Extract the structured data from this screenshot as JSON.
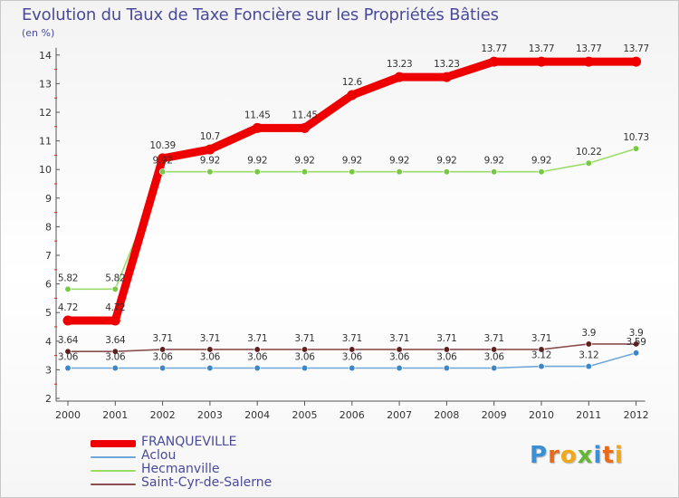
{
  "chart_data": {
    "type": "line",
    "title": "Evolution du Taux de Taxe Foncière sur les Propriétés Bâties",
    "ylabel": "(en %)",
    "xlabel": "",
    "ylim": [
      2,
      14
    ],
    "y_ticks": [
      "2",
      "3",
      "4",
      "5",
      "6",
      "7",
      "8",
      "9",
      "10",
      "11",
      "12",
      "13",
      "14"
    ],
    "categories": [
      "2000",
      "2001",
      "2002",
      "2003",
      "2004",
      "2005",
      "2006",
      "2007",
      "2008",
      "2009",
      "2010",
      "2011",
      "2012"
    ],
    "grid": false,
    "legend_position": "bottom-left",
    "series": [
      {
        "name": "Hecmanville",
        "color": "#99dd66",
        "marker": "#77c844",
        "values": [
          5.82,
          5.82,
          9.92,
          9.92,
          9.92,
          9.92,
          9.92,
          9.92,
          9.92,
          9.92,
          9.92,
          10.22,
          10.73
        ],
        "labels": [
          "5.82",
          "5.82",
          "9.92",
          "9.92",
          "9.92",
          "9.92",
          "9.92",
          "9.92",
          "9.92",
          "9.92",
          "9.92",
          "10.22",
          "10.73"
        ]
      },
      {
        "name": "Aclou",
        "color": "#6fa8d8",
        "marker": "#3f86c6",
        "values": [
          3.06,
          3.06,
          3.06,
          3.06,
          3.06,
          3.06,
          3.06,
          3.06,
          3.06,
          3.06,
          3.12,
          3.12,
          3.59
        ],
        "labels": [
          "3.06",
          "3.06",
          "3.06",
          "3.06",
          "3.06",
          "3.06",
          "3.06",
          "3.06",
          "3.06",
          "3.06",
          "3.12",
          "3.12",
          "3.59"
        ]
      },
      {
        "name": "Saint-Cyr-de-Salerne",
        "color": "#8a4e4e",
        "marker": "#5e1f1f",
        "values": [
          3.64,
          3.64,
          3.71,
          3.71,
          3.71,
          3.71,
          3.71,
          3.71,
          3.71,
          3.71,
          3.71,
          3.9,
          3.9
        ],
        "labels": [
          "3.64",
          "3.64",
          "3.71",
          "3.71",
          "3.71",
          "3.71",
          "3.71",
          "3.71",
          "3.71",
          "3.71",
          "3.71",
          "3.9",
          "3.9"
        ]
      },
      {
        "name": "FRANQUEVILLE",
        "color": "#ee0000",
        "marker": "#ee0000",
        "values": [
          4.72,
          4.72,
          10.39,
          10.7,
          11.45,
          11.45,
          12.6,
          13.23,
          13.23,
          13.77,
          13.77,
          13.77,
          13.77
        ],
        "labels": [
          "4.72",
          "4.72",
          "10.39",
          "10.7",
          "11.45",
          "11.45",
          "12.6",
          "13.23",
          "13.23",
          "13.77",
          "13.77",
          "13.77",
          "13.77"
        ]
      }
    ],
    "legend_order": [
      "FRANQUEVILLE",
      "Aclou",
      "Hecmanville",
      "Saint-Cyr-de-Salerne"
    ]
  },
  "logo": {
    "letters": [
      "P",
      "r",
      "o",
      "x",
      "i",
      "t",
      "i"
    ],
    "colors": [
      "#3b8fd6",
      "#e86a1a",
      "#f2a818",
      "#66b535",
      "#3b8fd6",
      "#e86a1a",
      "#f2a818"
    ]
  }
}
